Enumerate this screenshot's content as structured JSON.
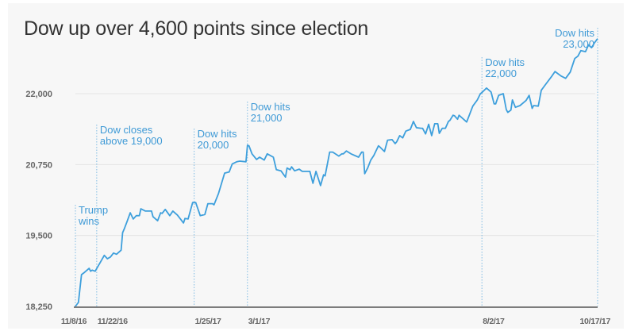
{
  "chart_data": {
    "type": "line",
    "title": "Dow up over 4,600 points since election",
    "xlabel": "",
    "ylabel": "",
    "ylim": [
      18250,
      23000
    ],
    "xlim": [
      "2016-11-08",
      "2017-10-17"
    ],
    "grid": true,
    "line_color": "#3d9fdc",
    "annotation_color": "#3f9ad6",
    "y_ticks": [
      {
        "value": 18250,
        "label": "18,250"
      },
      {
        "value": 19500,
        "label": "19,500"
      },
      {
        "value": 20750,
        "label": "20,750"
      },
      {
        "value": 22000,
        "label": "22,000"
      }
    ],
    "x_ticks": [
      {
        "date": "2016-11-08",
        "label": "11/8/16"
      },
      {
        "date": "2016-11-22",
        "label": "11/22/16"
      },
      {
        "date": "2017-01-25",
        "label": "1/25/17"
      },
      {
        "date": "2017-03-01",
        "label": "3/1/17"
      },
      {
        "date": "2017-08-02",
        "label": "8/2/17"
      },
      {
        "date": "2017-10-17",
        "label": "10/17/17"
      }
    ],
    "annotations": [
      {
        "date": "2016-11-08",
        "lines": [
          "Trump",
          "wins"
        ],
        "align": "left"
      },
      {
        "date": "2016-11-22",
        "lines": [
          "Dow closes",
          "above 19,000"
        ],
        "align": "left"
      },
      {
        "date": "2017-01-25",
        "lines": [
          "Dow hits",
          "20,000"
        ],
        "align": "left"
      },
      {
        "date": "2017-03-01",
        "lines": [
          "Dow hits",
          "21,000"
        ],
        "align": "left"
      },
      {
        "date": "2017-08-02",
        "lines": [
          "Dow hits",
          "22,000"
        ],
        "align": "left"
      },
      {
        "date": "2017-10-17",
        "lines": [
          "Dow hits",
          "23,000"
        ],
        "align": "right"
      }
    ],
    "series": [
      {
        "x": [
          "2016-11-08",
          "2016-11-10",
          "2016-11-12",
          "2016-11-14",
          "2016-11-17",
          "2016-11-18",
          "2016-11-19",
          "2016-11-21",
          "2016-11-24",
          "2016-11-27",
          "2016-11-29",
          "2016-12-01",
          "2016-12-03",
          "2016-12-05",
          "2016-12-08",
          "2016-12-09",
          "2016-12-10",
          "2016-12-12",
          "2016-12-14",
          "2016-12-16",
          "2016-12-18",
          "2016-12-20",
          "2016-12-21",
          "2016-12-24",
          "2016-12-28",
          "2016-12-29",
          "2017-01-01",
          "2017-01-03",
          "2017-01-04",
          "2017-01-06",
          "2017-01-09",
          "2017-01-11",
          "2017-01-14",
          "2017-01-16",
          "2017-01-18",
          "2017-01-19",
          "2017-01-21",
          "2017-01-24",
          "2017-01-26",
          "2017-01-29",
          "2017-02-01",
          "2017-02-03",
          "2017-02-06",
          "2017-02-07",
          "2017-02-10",
          "2017-02-14",
          "2017-02-17",
          "2017-02-19",
          "2017-02-22",
          "2017-02-24",
          "2017-02-28",
          "2017-03-01",
          "2017-03-02",
          "2017-03-04",
          "2017-03-07",
          "2017-03-09",
          "2017-03-12",
          "2017-03-14",
          "2017-03-18",
          "2017-03-20",
          "2017-03-23",
          "2017-03-26",
          "2017-03-27",
          "2017-03-29",
          "2017-03-30",
          "2017-04-01",
          "2017-04-04",
          "2017-04-06",
          "2017-04-11",
          "2017-04-13",
          "2017-04-15",
          "2017-04-18",
          "2017-04-20",
          "2017-04-21",
          "2017-04-24",
          "2017-04-26",
          "2017-04-30",
          "2017-05-02",
          "2017-05-03",
          "2017-05-05",
          "2017-05-08",
          "2017-05-13",
          "2017-05-15",
          "2017-05-16",
          "2017-05-17",
          "2017-05-19",
          "2017-05-21",
          "2017-05-23",
          "2017-05-26",
          "2017-05-27",
          "2017-05-30",
          "2017-06-01",
          "2017-06-04",
          "2017-06-06",
          "2017-06-07",
          "2017-06-09",
          "2017-06-11",
          "2017-06-13",
          "2017-06-16",
          "2017-06-18",
          "2017-06-20",
          "2017-06-23",
          "2017-06-24",
          "2017-06-26",
          "2017-06-28",
          "2017-06-30",
          "2017-07-02",
          "2017-07-04",
          "2017-07-05",
          "2017-07-07",
          "2017-07-09",
          "2017-07-11",
          "2017-07-12",
          "2017-07-14",
          "2017-07-15",
          "2017-07-17",
          "2017-07-18",
          "2017-07-23",
          "2017-07-27",
          "2017-07-30",
          "2017-08-01",
          "2017-08-02",
          "2017-08-05",
          "2017-08-08",
          "2017-08-10",
          "2017-08-11",
          "2017-08-13",
          "2017-08-16",
          "2017-08-18",
          "2017-08-19",
          "2017-08-21",
          "2017-08-22",
          "2017-08-24",
          "2017-08-27",
          "2017-08-31",
          "2017-09-02",
          "2017-09-04",
          "2017-09-05",
          "2017-09-08",
          "2017-09-10",
          "2017-09-13",
          "2017-09-17",
          "2017-09-19",
          "2017-09-23",
          "2017-09-26",
          "2017-09-29",
          "2017-10-02",
          "2017-10-04",
          "2017-10-06",
          "2017-10-09",
          "2017-10-11",
          "2017-10-13",
          "2017-10-15",
          "2017-10-17"
        ],
        "values": [
          18250,
          18320,
          18810,
          18850,
          18920,
          18870,
          18890,
          18870,
          19010,
          19150,
          19090,
          19120,
          19190,
          19170,
          19240,
          19550,
          19610,
          19750,
          19900,
          19790,
          19850,
          19850,
          19970,
          19930,
          19930,
          19830,
          19760,
          19900,
          19890,
          19960,
          19850,
          19930,
          19860,
          19790,
          19720,
          19800,
          19790,
          20080,
          20080,
          19850,
          19870,
          20060,
          20060,
          20040,
          20240,
          20600,
          20620,
          20760,
          20800,
          20810,
          20800,
          21090,
          21080,
          20940,
          20840,
          20880,
          20830,
          20940,
          20880,
          20660,
          20640,
          20530,
          20690,
          20660,
          20710,
          20640,
          20670,
          20630,
          20630,
          20420,
          20630,
          20380,
          20570,
          20550,
          20970,
          20970,
          20900,
          20940,
          20940,
          20990,
          20940,
          20880,
          20970,
          20970,
          20590,
          20690,
          20830,
          20910,
          21080,
          21060,
          20980,
          21180,
          21190,
          21120,
          21150,
          21260,
          21220,
          21340,
          21370,
          21510,
          21400,
          21390,
          21390,
          21290,
          21460,
          21260,
          21470,
          21470,
          21300,
          21390,
          21390,
          21510,
          21530,
          21620,
          21610,
          21550,
          21620,
          21500,
          21780,
          21890,
          22000,
          22020,
          22100,
          22030,
          21820,
          21820,
          21970,
          22000,
          21720,
          21670,
          21710,
          21890,
          21760,
          21790,
          21880,
          21970,
          21740,
          21790,
          21780,
          22060,
          22170,
          22310,
          22390,
          22310,
          22270,
          22380,
          22620,
          22660,
          22760,
          22740,
          22860,
          22810,
          22900,
          22970
        ]
      }
    ]
  }
}
